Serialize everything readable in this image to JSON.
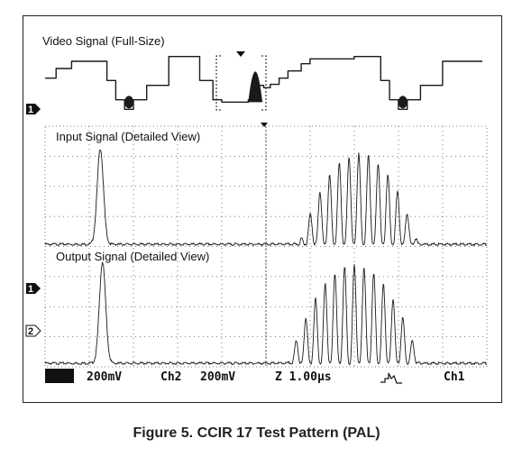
{
  "caption": "Figure 5. CCIR 17 Test Pattern (PAL)",
  "panels": {
    "video_title": "Video Signal (Full-Size)",
    "input_title": "Input Signal (Detailed View)",
    "output_title": "Output Signal (Detailed View)"
  },
  "channel_markers": {
    "ch1": "1",
    "ch2": "2"
  },
  "status_bar": {
    "ch1_badge": "Ch1",
    "ch1_scale": "200mV",
    "ch2_label": "Ch2",
    "ch2_scale": "200mV",
    "timebase": "Z 1.00µs",
    "trigger_source": "Ch1"
  },
  "colors": {
    "trace": "#1a1a1a",
    "grid": "#555555",
    "frame": "#222222",
    "badge_bg": "#111111",
    "badge_fg": "#ffffff"
  },
  "chart_data": {
    "type": "line",
    "grid": true,
    "series": [
      {
        "title_key": "video_title",
        "x_range": [
          0,
          9.9
        ],
        "note": "",
        "steps": [
          [
            0,
            0.55
          ],
          [
            0.25,
            0.75
          ],
          [
            0.6,
            0.9
          ],
          [
            1.4,
            0.5
          ],
          [
            1.6,
            0.1
          ],
          [
            1.8,
            -0.1
          ],
          [
            2.0,
            0.1
          ],
          [
            2.3,
            0.4
          ],
          [
            2.8,
            1.0
          ],
          [
            3.5,
            0.5
          ],
          [
            3.8,
            0.1
          ],
          [
            4.0,
            0.05
          ],
          [
            4.6,
            0.1
          ],
          [
            4.75,
            0.4
          ],
          [
            4.95,
            0.35
          ],
          [
            5.1,
            0.42
          ],
          [
            5.3,
            0.55
          ],
          [
            5.5,
            0.7
          ],
          [
            5.8,
            0.85
          ],
          [
            6.0,
            0.95
          ],
          [
            7.0,
            1.0
          ],
          [
            7.6,
            0.5
          ],
          [
            7.8,
            0.1
          ],
          [
            8.0,
            -0.1
          ],
          [
            8.2,
            0.1
          ],
          [
            8.5,
            0.4
          ],
          [
            9.0,
            0.9
          ],
          [
            9.9,
            0.9
          ]
        ]
      },
      {
        "title_key": "input_title",
        "x_range_us": [
          0,
          10
        ],
        "pulse": {
          "center_us": 1.25,
          "peak": 0.9,
          "width_us": 0.1
        },
        "burst": {
          "center_us": 7.1,
          "peak": 0.85,
          "half_width_us": 1.35,
          "period_us": 0.22
        }
      },
      {
        "title_key": "output_title",
        "x_range_us": [
          0,
          10
        ],
        "pulse": {
          "center_us": 1.3,
          "peak": 0.95,
          "width_us": 0.1
        },
        "burst": {
          "center_us": 7.0,
          "peak": 0.92,
          "half_width_us": 1.5,
          "period_us": 0.22
        }
      }
    ]
  }
}
